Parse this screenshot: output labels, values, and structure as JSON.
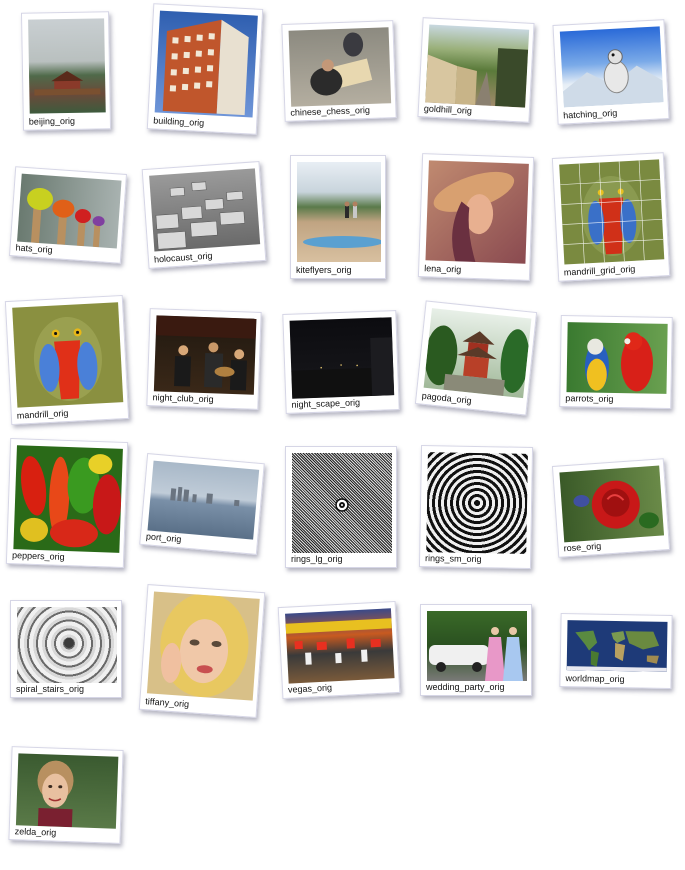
{
  "gallery": {
    "items": [
      {
        "label": "beijing_orig"
      },
      {
        "label": "building_orig"
      },
      {
        "label": "chinese_chess_orig"
      },
      {
        "label": "goldhill_orig"
      },
      {
        "label": "hatching_orig"
      },
      {
        "label": "hats_orig"
      },
      {
        "label": "holocaust_orig"
      },
      {
        "label": "kiteflyers_orig"
      },
      {
        "label": "lena_orig"
      },
      {
        "label": "mandrill_grid_orig"
      },
      {
        "label": "mandrill_orig"
      },
      {
        "label": "night_club_orig"
      },
      {
        "label": "night_scape_orig"
      },
      {
        "label": "pagoda_orig"
      },
      {
        "label": "parrots_orig"
      },
      {
        "label": "peppers_orig"
      },
      {
        "label": "port_orig"
      },
      {
        "label": "rings_lg_orig"
      },
      {
        "label": "rings_sm_orig"
      },
      {
        "label": "rose_orig"
      },
      {
        "label": "spiral_stairs_orig"
      },
      {
        "label": "tiffany_orig"
      },
      {
        "label": "vegas_orig"
      },
      {
        "label": "wedding_party_orig"
      },
      {
        "label": "worldmap_orig"
      },
      {
        "label": "zelda_orig"
      }
    ]
  }
}
